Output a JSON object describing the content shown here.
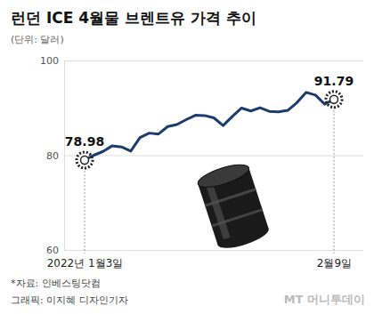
{
  "chart_data": {
    "type": "line",
    "title": "런던 ICE 4월물 브렌트유 가격 추이",
    "subtitle": "(단위: 달러)",
    "categories": [
      "2022년 1월3일",
      null,
      null,
      null,
      null,
      null,
      null,
      null,
      null,
      null,
      null,
      null,
      null,
      null,
      null,
      null,
      null,
      null,
      null,
      null,
      null,
      null,
      null,
      null,
      null,
      null,
      null,
      "2월9일"
    ],
    "values": [
      78.98,
      80.0,
      80.8,
      81.99,
      81.75,
      80.87,
      83.72,
      84.67,
      84.47,
      86.06,
      86.48,
      87.51,
      88.44,
      88.38,
      87.89,
      86.27,
      88.2,
      89.96,
      89.34,
      90.03,
      89.26,
      89.16,
      89.47,
      91.11,
      93.27,
      92.69,
      90.78,
      91.79
    ],
    "value_labels": [
      "78.98",
      null,
      null,
      null,
      null,
      null,
      null,
      null,
      null,
      null,
      null,
      null,
      null,
      null,
      null,
      null,
      null,
      null,
      null,
      null,
      null,
      null,
      null,
      null,
      null,
      null,
      null,
      "91.79"
    ],
    "color": "#1d3c6e",
    "ylim": [
      60,
      100
    ],
    "yticks": [
      60,
      80,
      100
    ],
    "grid": true,
    "source": "*자료: 인베스팅닷컴",
    "credit": "그래픽: 이지혜 디자인기자",
    "watermark": "MT 머니투데이"
  }
}
